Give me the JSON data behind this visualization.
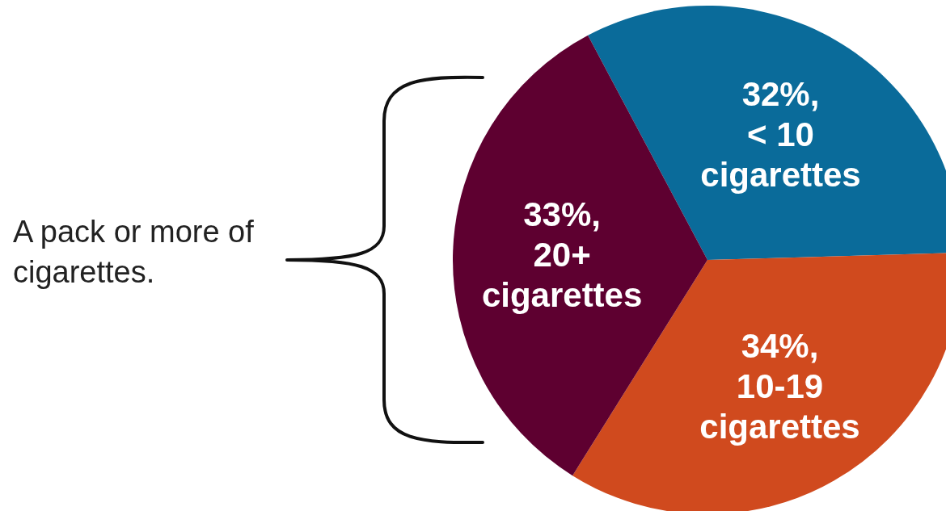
{
  "chart_data": {
    "type": "pie",
    "categories": [
      "< 10 cigarettes",
      "10-19 cigarettes",
      "20+ cigarettes"
    ],
    "values": [
      32,
      34,
      33
    ],
    "colors": [
      "#0a6b9a",
      "#d04a1e",
      "#5e0030"
    ],
    "value_labels": [
      "32%,",
      "34%,",
      "33%,"
    ],
    "annotations": [
      "A pack or more of cigarettes."
    ]
  }
}
